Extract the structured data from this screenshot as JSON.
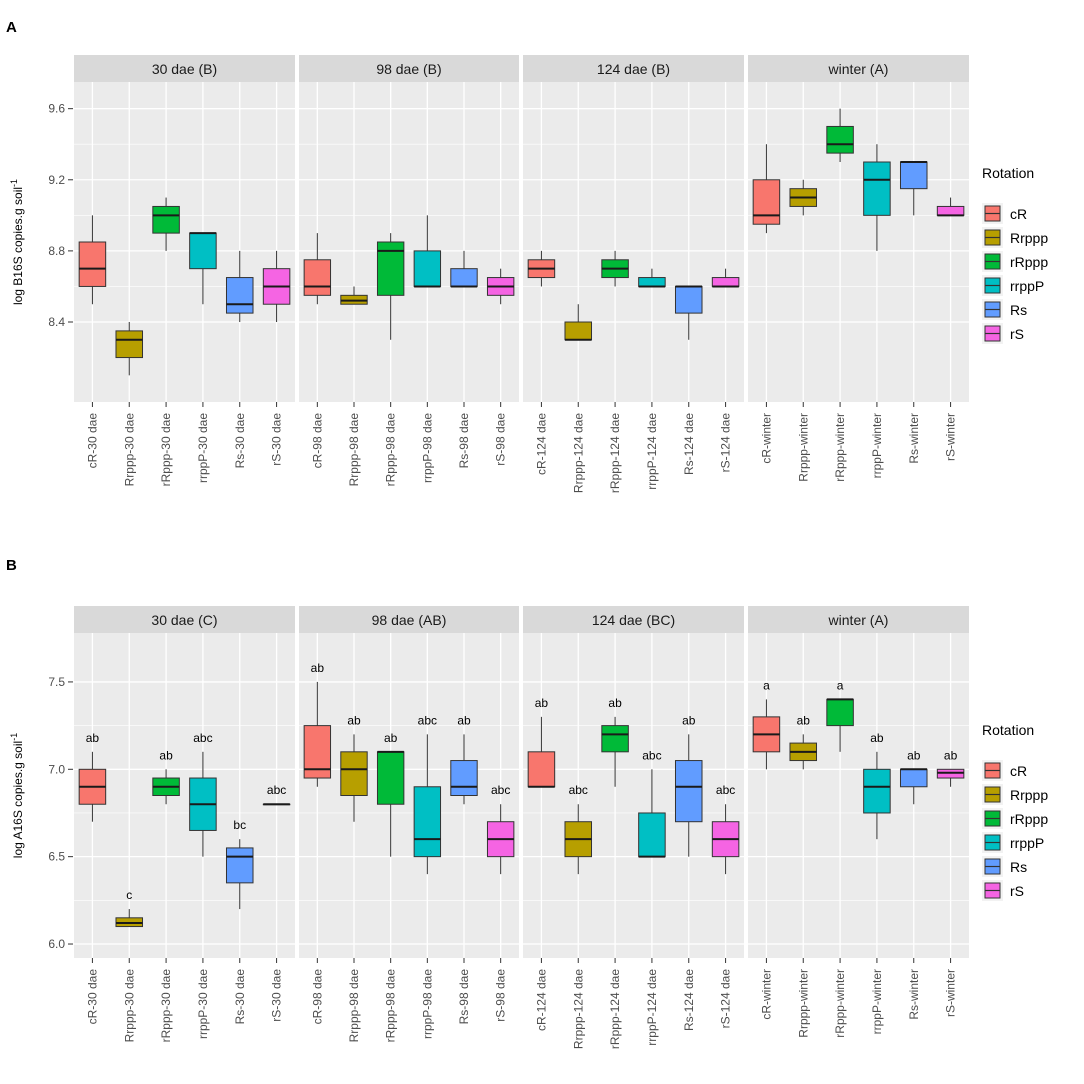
{
  "colors": {
    "cR": "#F8766D",
    "Rrppp": "#B79F00",
    "rRppp": "#00BA38",
    "rrppP": "#00BFC4",
    "Rs": "#619CFF",
    "rS": "#F564E3",
    "panel_bg": "#EBEBEB",
    "strip_bg": "#D9D9D9",
    "grid": "#FFFFFF"
  },
  "chart_data": [
    {
      "type": "boxplot",
      "panel_label": "A",
      "ylabel": "log B16S copies.g soil",
      "ylabel_superscript": "-1",
      "ylim": [
        7.95,
        9.75
      ],
      "yticks": [
        8.4,
        8.8,
        9.2,
        9.6
      ],
      "ytick_labels": [
        "8.4",
        "8.8",
        "9.2",
        "9.6"
      ],
      "legend_title": "Rotation",
      "legend_items": [
        "cR",
        "Rrppp",
        "rRppp",
        "rrppP",
        "Rs",
        "rS"
      ],
      "facets": [
        {
          "strip": "30 dae (B)",
          "boxes": [
            {
              "label": "cR-30 dae",
              "group": "cR",
              "min": 8.5,
              "q1": 8.6,
              "median": 8.7,
              "q3": 8.85,
              "max": 9.0,
              "letter": ""
            },
            {
              "label": "Rrppp-30 dae",
              "group": "Rrppp",
              "min": 8.1,
              "q1": 8.2,
              "median": 8.3,
              "q3": 8.35,
              "max": 8.4,
              "letter": ""
            },
            {
              "label": "rRppp-30 dae",
              "group": "rRppp",
              "min": 8.8,
              "q1": 8.9,
              "median": 9.0,
              "q3": 9.05,
              "max": 9.1,
              "letter": ""
            },
            {
              "label": "rrppP-30 dae",
              "group": "rrppP",
              "min": 8.5,
              "q1": 8.7,
              "median": 8.9,
              "q3": 8.9,
              "max": 8.9,
              "letter": ""
            },
            {
              "label": "Rs-30 dae",
              "group": "Rs",
              "min": 8.4,
              "q1": 8.45,
              "median": 8.5,
              "q3": 8.65,
              "max": 8.8,
              "letter": ""
            },
            {
              "label": "rS-30 dae",
              "group": "rS",
              "min": 8.4,
              "q1": 8.5,
              "median": 8.6,
              "q3": 8.7,
              "max": 8.8,
              "letter": ""
            }
          ]
        },
        {
          "strip": "98 dae (B)",
          "boxes": [
            {
              "label": "cR-98 dae",
              "group": "cR",
              "min": 8.5,
              "q1": 8.55,
              "median": 8.6,
              "q3": 8.75,
              "max": 8.9,
              "letter": ""
            },
            {
              "label": "Rrppp-98 dae",
              "group": "Rrppp",
              "min": 8.5,
              "q1": 8.5,
              "median": 8.52,
              "q3": 8.55,
              "max": 8.6,
              "letter": ""
            },
            {
              "label": "rRppp-98 dae",
              "group": "rRppp",
              "min": 8.3,
              "q1": 8.55,
              "median": 8.8,
              "q3": 8.85,
              "max": 8.9,
              "letter": ""
            },
            {
              "label": "rrppP-98 dae",
              "group": "rrppP",
              "min": 8.6,
              "q1": 8.6,
              "median": 8.6,
              "q3": 8.8,
              "max": 9.0,
              "letter": ""
            },
            {
              "label": "Rs-98 dae",
              "group": "Rs",
              "min": 8.6,
              "q1": 8.6,
              "median": 8.6,
              "q3": 8.7,
              "max": 8.8,
              "letter": ""
            },
            {
              "label": "rS-98 dae",
              "group": "rS",
              "min": 8.5,
              "q1": 8.55,
              "median": 8.6,
              "q3": 8.65,
              "max": 8.7,
              "letter": ""
            }
          ]
        },
        {
          "strip": "124 dae (B)",
          "boxes": [
            {
              "label": "cR-124 dae",
              "group": "cR",
              "min": 8.6,
              "q1": 8.65,
              "median": 8.7,
              "q3": 8.75,
              "max": 8.8,
              "letter": ""
            },
            {
              "label": "Rrppp-124 dae",
              "group": "Rrppp",
              "min": 8.3,
              "q1": 8.3,
              "median": 8.3,
              "q3": 8.4,
              "max": 8.5,
              "letter": ""
            },
            {
              "label": "rRppp-124 dae",
              "group": "rRppp",
              "min": 8.6,
              "q1": 8.65,
              "median": 8.7,
              "q3": 8.75,
              "max": 8.8,
              "letter": ""
            },
            {
              "label": "rrppP-124 dae",
              "group": "rrppP",
              "min": 8.6,
              "q1": 8.6,
              "median": 8.6,
              "q3": 8.65,
              "max": 8.7,
              "letter": ""
            },
            {
              "label": "Rs-124 dae",
              "group": "Rs",
              "min": 8.3,
              "q1": 8.45,
              "median": 8.6,
              "q3": 8.6,
              "max": 8.6,
              "letter": ""
            },
            {
              "label": "rS-124 dae",
              "group": "rS",
              "min": 8.6,
              "q1": 8.6,
              "median": 8.6,
              "q3": 8.65,
              "max": 8.7,
              "letter": ""
            }
          ]
        },
        {
          "strip": "winter (A)",
          "boxes": [
            {
              "label": "cR-winter",
              "group": "cR",
              "min": 8.9,
              "q1": 8.95,
              "median": 9.0,
              "q3": 9.2,
              "max": 9.4,
              "letter": ""
            },
            {
              "label": "Rrppp-winter",
              "group": "Rrppp",
              "min": 9.0,
              "q1": 9.05,
              "median": 9.1,
              "q3": 9.15,
              "max": 9.2,
              "letter": ""
            },
            {
              "label": "rRppp-winter",
              "group": "rRppp",
              "min": 9.3,
              "q1": 9.35,
              "median": 9.4,
              "q3": 9.5,
              "max": 9.6,
              "letter": ""
            },
            {
              "label": "rrppP-winter",
              "group": "rrppP",
              "min": 8.8,
              "q1": 9.0,
              "median": 9.2,
              "q3": 9.3,
              "max": 9.4,
              "letter": ""
            },
            {
              "label": "Rs-winter",
              "group": "Rs",
              "min": 9.0,
              "q1": 9.15,
              "median": 9.3,
              "q3": 9.3,
              "max": 9.3,
              "letter": ""
            },
            {
              "label": "rS-winter",
              "group": "rS",
              "min": 9.0,
              "q1": 9.0,
              "median": 9.0,
              "q3": 9.05,
              "max": 9.1,
              "letter": ""
            }
          ]
        }
      ]
    },
    {
      "type": "boxplot",
      "panel_label": "B",
      "ylabel": "log A16S copies.g soil",
      "ylabel_superscript": "-1",
      "ylim": [
        5.92,
        7.78
      ],
      "yticks": [
        6.0,
        6.5,
        7.0,
        7.5
      ],
      "ytick_labels": [
        "6.0",
        "6.5",
        "7.0",
        "7.5"
      ],
      "legend_title": "Rotation",
      "legend_items": [
        "cR",
        "Rrppp",
        "rRppp",
        "rrppP",
        "Rs",
        "rS"
      ],
      "facets": [
        {
          "strip": "30 dae (C)",
          "boxes": [
            {
              "label": "cR-30 dae",
              "group": "cR",
              "min": 6.7,
              "q1": 6.8,
              "median": 6.9,
              "q3": 7.0,
              "max": 7.1,
              "letter": "ab"
            },
            {
              "label": "Rrppp-30 dae",
              "group": "Rrppp",
              "min": 6.1,
              "q1": 6.1,
              "median": 6.12,
              "q3": 6.15,
              "max": 6.2,
              "letter": "c"
            },
            {
              "label": "rRppp-30 dae",
              "group": "rRppp",
              "min": 6.8,
              "q1": 6.85,
              "median": 6.9,
              "q3": 6.95,
              "max": 7.0,
              "letter": "ab"
            },
            {
              "label": "rrppP-30 dae",
              "group": "rrppP",
              "min": 6.5,
              "q1": 6.65,
              "median": 6.8,
              "q3": 6.95,
              "max": 7.1,
              "letter": "abc"
            },
            {
              "label": "Rs-30 dae",
              "group": "Rs",
              "min": 6.2,
              "q1": 6.35,
              "median": 6.5,
              "q3": 6.55,
              "max": 6.6,
              "letter": "bc"
            },
            {
              "label": "rS-30 dae",
              "group": "rS",
              "min": 6.8,
              "q1": 6.8,
              "median": 6.8,
              "q3": 6.8,
              "max": 6.8,
              "letter": "abc"
            }
          ]
        },
        {
          "strip": "98 dae (AB)",
          "boxes": [
            {
              "label": "cR-98 dae",
              "group": "cR",
              "min": 6.9,
              "q1": 6.95,
              "median": 7.0,
              "q3": 7.25,
              "max": 7.5,
              "letter": "ab"
            },
            {
              "label": "Rrppp-98 dae",
              "group": "Rrppp",
              "min": 6.7,
              "q1": 6.85,
              "median": 7.0,
              "q3": 7.1,
              "max": 7.2,
              "letter": "ab"
            },
            {
              "label": "rRppp-98 dae",
              "group": "rRppp",
              "min": 6.5,
              "q1": 6.8,
              "median": 7.1,
              "q3": 7.1,
              "max": 7.1,
              "letter": "ab"
            },
            {
              "label": "rrppP-98 dae",
              "group": "rrppP",
              "min": 6.4,
              "q1": 6.5,
              "median": 6.6,
              "q3": 6.9,
              "max": 7.2,
              "letter": "abc"
            },
            {
              "label": "Rs-98 dae",
              "group": "Rs",
              "min": 6.8,
              "q1": 6.85,
              "median": 6.9,
              "q3": 7.05,
              "max": 7.2,
              "letter": "ab"
            },
            {
              "label": "rS-98 dae",
              "group": "rS",
              "min": 6.4,
              "q1": 6.5,
              "median": 6.6,
              "q3": 6.7,
              "max": 6.8,
              "letter": "abc"
            }
          ]
        },
        {
          "strip": "124 dae (BC)",
          "boxes": [
            {
              "label": "cR-124 dae",
              "group": "cR",
              "min": 6.9,
              "q1": 6.9,
              "median": 6.9,
              "q3": 7.1,
              "max": 7.3,
              "letter": "ab"
            },
            {
              "label": "Rrppp-124 dae",
              "group": "Rrppp",
              "min": 6.4,
              "q1": 6.5,
              "median": 6.6,
              "q3": 6.7,
              "max": 6.8,
              "letter": "abc"
            },
            {
              "label": "rRppp-124 dae",
              "group": "rRppp",
              "min": 6.9,
              "q1": 7.1,
              "median": 7.2,
              "q3": 7.25,
              "max": 7.3,
              "letter": "ab"
            },
            {
              "label": "rrppP-124 dae",
              "group": "rrppP",
              "min": 6.5,
              "q1": 6.5,
              "median": 6.5,
              "q3": 6.75,
              "max": 7.0,
              "letter": "abc"
            },
            {
              "label": "Rs-124 dae",
              "group": "Rs",
              "min": 6.5,
              "q1": 6.7,
              "median": 6.9,
              "q3": 7.05,
              "max": 7.2,
              "letter": "ab"
            },
            {
              "label": "rS-124 dae",
              "group": "rS",
              "min": 6.4,
              "q1": 6.5,
              "median": 6.6,
              "q3": 6.7,
              "max": 6.8,
              "letter": "abc"
            }
          ]
        },
        {
          "strip": "winter (A)",
          "boxes": [
            {
              "label": "cR-winter",
              "group": "cR",
              "min": 7.0,
              "q1": 7.1,
              "median": 7.2,
              "q3": 7.3,
              "max": 7.4,
              "letter": "a"
            },
            {
              "label": "Rrppp-winter",
              "group": "Rrppp",
              "min": 7.0,
              "q1": 7.05,
              "median": 7.1,
              "q3": 7.15,
              "max": 7.2,
              "letter": "ab"
            },
            {
              "label": "rRppp-winter",
              "group": "rRppp",
              "min": 7.1,
              "q1": 7.25,
              "median": 7.4,
              "q3": 7.4,
              "max": 7.4,
              "letter": "a"
            },
            {
              "label": "rrppP-winter",
              "group": "rrppP",
              "min": 6.6,
              "q1": 6.75,
              "median": 6.9,
              "q3": 7.0,
              "max": 7.1,
              "letter": "ab"
            },
            {
              "label": "Rs-winter",
              "group": "Rs",
              "min": 6.8,
              "q1": 6.9,
              "median": 7.0,
              "q3": 7.0,
              "max": 7.0,
              "letter": "ab"
            },
            {
              "label": "rS-winter",
              "group": "rS",
              "min": 6.9,
              "q1": 6.95,
              "median": 6.98,
              "q3": 7.0,
              "max": 7.0,
              "letter": "ab"
            }
          ]
        }
      ]
    }
  ]
}
